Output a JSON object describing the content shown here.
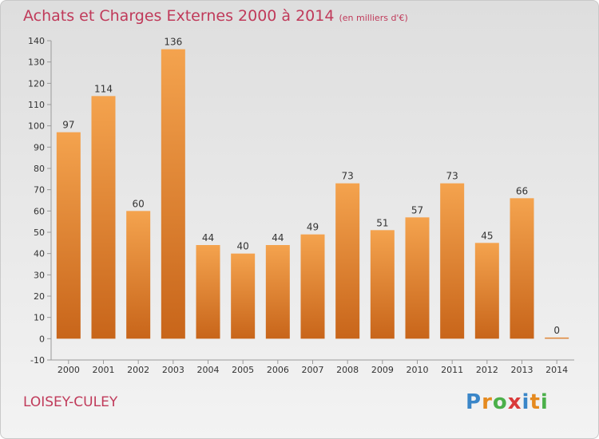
{
  "header": {
    "title": "Achats et Charges Externes 2000 à 2014",
    "unit": "(en milliers d'€)"
  },
  "footer": {
    "commune": "LOISEY-CULEY",
    "logo": [
      "P",
      "r",
      "o",
      "x",
      "i",
      "t",
      "i"
    ],
    "logo_colors": [
      "#3a86c8",
      "#e58a1f",
      "#4bb04a",
      "#d93a3a",
      "#3a86c8",
      "#e58a1f",
      "#4bb04a"
    ]
  },
  "chart_data": {
    "type": "bar",
    "categories": [
      "2000",
      "2001",
      "2002",
      "2003",
      "2004",
      "2005",
      "2006",
      "2007",
      "2008",
      "2009",
      "2010",
      "2011",
      "2012",
      "2013",
      "2014"
    ],
    "values": [
      97,
      114,
      60,
      136,
      44,
      40,
      44,
      49,
      73,
      51,
      57,
      73,
      45,
      66,
      0
    ],
    "title": "Achats et Charges Externes 2000 à 2014",
    "xlabel": "",
    "ylabel": "",
    "ylim": [
      -10,
      140
    ],
    "yticks": [
      -10,
      0,
      10,
      20,
      30,
      40,
      50,
      60,
      70,
      80,
      90,
      100,
      110,
      120,
      130,
      140
    ],
    "grid": false,
    "bar_color_top": "#f4a34e",
    "bar_color_bottom": "#c8651a"
  }
}
